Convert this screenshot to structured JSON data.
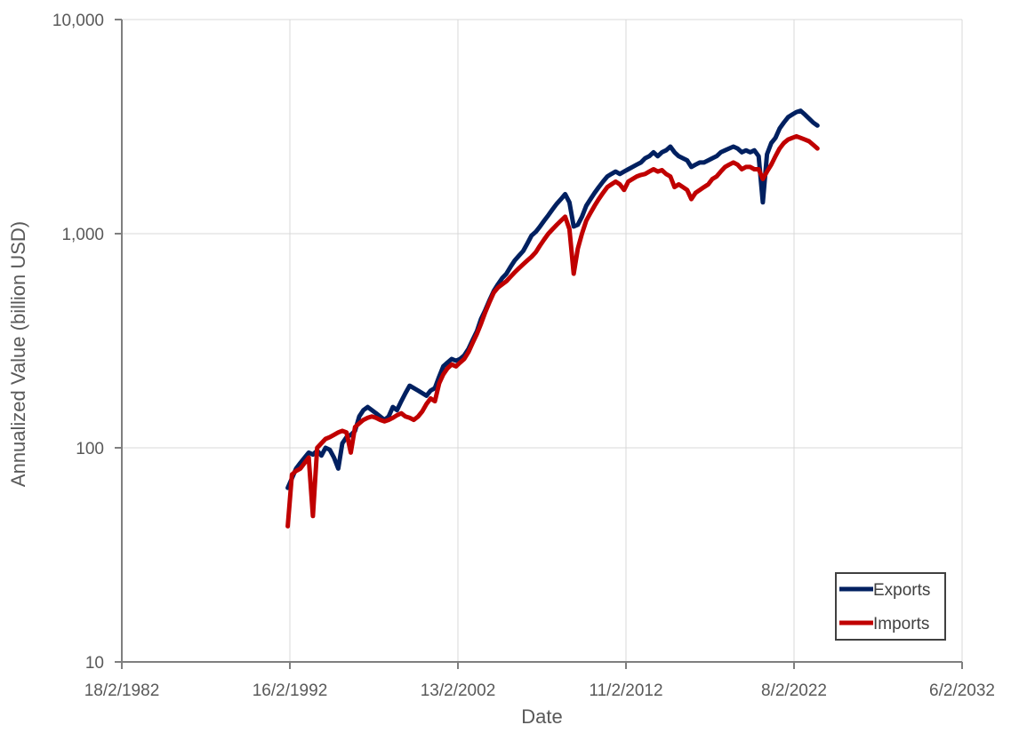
{
  "chart_data": {
    "type": "line",
    "title": "",
    "xlabel": "Date",
    "ylabel": "Annualized Value (billion USD)",
    "x_axis": {
      "kind": "date",
      "ticks": [
        "1982-02-18",
        "1992-02-16",
        "2002-02-13",
        "2012-02-11",
        "2022-02-08",
        "2032-02-06"
      ],
      "tick_labels": [
        "18/2/1982",
        "16/2/1992",
        "13/2/2002",
        "11/2/2012",
        "8/2/2022",
        "6/2/2032"
      ],
      "range": [
        "1982-02-18",
        "2032-02-06"
      ]
    },
    "y_axis": {
      "scale": "log",
      "range": [
        10,
        10000
      ],
      "ticks": [
        10,
        100,
        1000,
        10000
      ],
      "tick_labels": [
        "10",
        "100",
        "1,000",
        "10,000"
      ]
    },
    "grid": true,
    "legend": {
      "position": "bottom-right",
      "entries": [
        "Exports",
        "Imports"
      ]
    },
    "series": [
      {
        "name": "Exports",
        "color": "#002060",
        "points": [
          [
            "1992-01-01",
            65
          ],
          [
            "1992-04-01",
            72
          ],
          [
            "1992-07-01",
            80
          ],
          [
            "1992-10-01",
            85
          ],
          [
            "1993-01-01",
            90
          ],
          [
            "1993-04-01",
            95
          ],
          [
            "1993-07-01",
            93
          ],
          [
            "1993-10-01",
            97
          ],
          [
            "1994-01-01",
            92
          ],
          [
            "1994-04-01",
            100
          ],
          [
            "1994-07-01",
            98
          ],
          [
            "1994-10-01",
            90
          ],
          [
            "1995-01-01",
            80
          ],
          [
            "1995-04-01",
            105
          ],
          [
            "1995-07-01",
            112
          ],
          [
            "1995-10-01",
            115
          ],
          [
            "1996-01-01",
            120
          ],
          [
            "1996-04-01",
            140
          ],
          [
            "1996-07-01",
            150
          ],
          [
            "1996-10-01",
            155
          ],
          [
            "1997-01-01",
            150
          ],
          [
            "1997-04-01",
            145
          ],
          [
            "1997-07-01",
            140
          ],
          [
            "1997-10-01",
            135
          ],
          [
            "1998-01-01",
            140
          ],
          [
            "1998-04-01",
            155
          ],
          [
            "1998-07-01",
            150
          ],
          [
            "1998-10-01",
            165
          ],
          [
            "1999-01-01",
            180
          ],
          [
            "1999-04-01",
            195
          ],
          [
            "1999-07-01",
            190
          ],
          [
            "1999-10-01",
            185
          ],
          [
            "2000-01-01",
            180
          ],
          [
            "2000-04-01",
            175
          ],
          [
            "2000-07-01",
            185
          ],
          [
            "2000-10-01",
            190
          ],
          [
            "2001-01-01",
            215
          ],
          [
            "2001-04-01",
            240
          ],
          [
            "2001-07-01",
            250
          ],
          [
            "2001-10-01",
            260
          ],
          [
            "2002-01-01",
            255
          ],
          [
            "2002-04-01",
            260
          ],
          [
            "2002-07-01",
            270
          ],
          [
            "2002-10-01",
            290
          ],
          [
            "2003-01-01",
            320
          ],
          [
            "2003-04-01",
            350
          ],
          [
            "2003-07-01",
            400
          ],
          [
            "2003-10-01",
            440
          ],
          [
            "2004-01-01",
            490
          ],
          [
            "2004-04-01",
            540
          ],
          [
            "2004-07-01",
            580
          ],
          [
            "2004-10-01",
            620
          ],
          [
            "2005-01-01",
            650
          ],
          [
            "2005-04-01",
            700
          ],
          [
            "2005-07-01",
            750
          ],
          [
            "2005-10-01",
            790
          ],
          [
            "2006-01-01",
            830
          ],
          [
            "2006-04-01",
            900
          ],
          [
            "2006-07-01",
            980
          ],
          [
            "2006-10-01",
            1020
          ],
          [
            "2007-01-01",
            1080
          ],
          [
            "2007-04-01",
            1150
          ],
          [
            "2007-07-01",
            1220
          ],
          [
            "2007-10-01",
            1300
          ],
          [
            "2008-01-01",
            1380
          ],
          [
            "2008-04-01",
            1450
          ],
          [
            "2008-07-01",
            1530
          ],
          [
            "2008-10-01",
            1400
          ],
          [
            "2009-01-01",
            1080
          ],
          [
            "2009-04-01",
            1100
          ],
          [
            "2009-07-01",
            1200
          ],
          [
            "2009-10-01",
            1350
          ],
          [
            "2010-01-01",
            1450
          ],
          [
            "2010-04-01",
            1550
          ],
          [
            "2010-07-01",
            1650
          ],
          [
            "2010-10-01",
            1750
          ],
          [
            "2011-01-01",
            1850
          ],
          [
            "2011-04-01",
            1900
          ],
          [
            "2011-07-01",
            1950
          ],
          [
            "2011-10-01",
            1900
          ],
          [
            "2012-01-01",
            1950
          ],
          [
            "2012-04-01",
            2000
          ],
          [
            "2012-07-01",
            2050
          ],
          [
            "2012-10-01",
            2100
          ],
          [
            "2013-01-01",
            2150
          ],
          [
            "2013-04-01",
            2250
          ],
          [
            "2013-07-01",
            2300
          ],
          [
            "2013-10-01",
            2400
          ],
          [
            "2014-01-01",
            2300
          ],
          [
            "2014-04-01",
            2400
          ],
          [
            "2014-07-01",
            2450
          ],
          [
            "2014-10-01",
            2550
          ],
          [
            "2015-01-01",
            2400
          ],
          [
            "2015-04-01",
            2300
          ],
          [
            "2015-07-01",
            2250
          ],
          [
            "2015-10-01",
            2200
          ],
          [
            "2016-01-01",
            2050
          ],
          [
            "2016-04-01",
            2100
          ],
          [
            "2016-07-01",
            2150
          ],
          [
            "2016-10-01",
            2150
          ],
          [
            "2017-01-01",
            2200
          ],
          [
            "2017-04-01",
            2250
          ],
          [
            "2017-07-01",
            2300
          ],
          [
            "2017-10-01",
            2400
          ],
          [
            "2018-01-01",
            2450
          ],
          [
            "2018-04-01",
            2500
          ],
          [
            "2018-07-01",
            2550
          ],
          [
            "2018-10-01",
            2500
          ],
          [
            "2019-01-01",
            2400
          ],
          [
            "2019-04-01",
            2450
          ],
          [
            "2019-07-01",
            2400
          ],
          [
            "2019-10-01",
            2450
          ],
          [
            "2020-01-01",
            2300
          ],
          [
            "2020-04-01",
            1400
          ],
          [
            "2020-07-01",
            2350
          ],
          [
            "2020-10-01",
            2650
          ],
          [
            "2021-01-01",
            2800
          ],
          [
            "2021-04-01",
            3100
          ],
          [
            "2021-07-01",
            3300
          ],
          [
            "2021-10-01",
            3500
          ],
          [
            "2022-01-01",
            3600
          ],
          [
            "2022-04-01",
            3700
          ],
          [
            "2022-07-01",
            3750
          ],
          [
            "2022-10-01",
            3600
          ],
          [
            "2023-01-01",
            3450
          ],
          [
            "2023-04-01",
            3300
          ],
          [
            "2023-07-01",
            3200
          ]
        ]
      },
      {
        "name": "Imports",
        "color": "#c00000",
        "points": [
          [
            "1992-01-01",
            43
          ],
          [
            "1992-04-01",
            75
          ],
          [
            "1992-07-01",
            78
          ],
          [
            "1992-10-01",
            80
          ],
          [
            "1993-01-01",
            85
          ],
          [
            "1993-04-01",
            90
          ],
          [
            "1993-07-01",
            48
          ],
          [
            "1993-10-01",
            100
          ],
          [
            "1994-01-01",
            105
          ],
          [
            "1994-04-01",
            110
          ],
          [
            "1994-07-01",
            112
          ],
          [
            "1994-10-01",
            115
          ],
          [
            "1995-01-01",
            118
          ],
          [
            "1995-04-01",
            120
          ],
          [
            "1995-07-01",
            118
          ],
          [
            "1995-10-01",
            95
          ],
          [
            "1996-01-01",
            125
          ],
          [
            "1996-04-01",
            130
          ],
          [
            "1996-07-01",
            135
          ],
          [
            "1996-10-01",
            138
          ],
          [
            "1997-01-01",
            140
          ],
          [
            "1997-04-01",
            138
          ],
          [
            "1997-07-01",
            135
          ],
          [
            "1997-10-01",
            133
          ],
          [
            "1998-01-01",
            135
          ],
          [
            "1998-04-01",
            138
          ],
          [
            "1998-07-01",
            142
          ],
          [
            "1998-10-01",
            145
          ],
          [
            "1999-01-01",
            140
          ],
          [
            "1999-04-01",
            138
          ],
          [
            "1999-07-01",
            135
          ],
          [
            "1999-10-01",
            140
          ],
          [
            "2000-01-01",
            148
          ],
          [
            "2000-04-01",
            160
          ],
          [
            "2000-07-01",
            170
          ],
          [
            "2000-10-01",
            165
          ],
          [
            "2001-01-01",
            200
          ],
          [
            "2001-04-01",
            220
          ],
          [
            "2001-07-01",
            235
          ],
          [
            "2001-10-01",
            245
          ],
          [
            "2002-01-01",
            240
          ],
          [
            "2002-04-01",
            250
          ],
          [
            "2002-07-01",
            260
          ],
          [
            "2002-10-01",
            280
          ],
          [
            "2003-01-01",
            310
          ],
          [
            "2003-04-01",
            340
          ],
          [
            "2003-07-01",
            380
          ],
          [
            "2003-10-01",
            430
          ],
          [
            "2004-01-01",
            480
          ],
          [
            "2004-04-01",
            530
          ],
          [
            "2004-07-01",
            560
          ],
          [
            "2004-10-01",
            580
          ],
          [
            "2005-01-01",
            600
          ],
          [
            "2005-04-01",
            630
          ],
          [
            "2005-07-01",
            660
          ],
          [
            "2005-10-01",
            690
          ],
          [
            "2006-01-01",
            720
          ],
          [
            "2006-04-01",
            750
          ],
          [
            "2006-07-01",
            780
          ],
          [
            "2006-10-01",
            820
          ],
          [
            "2007-01-01",
            880
          ],
          [
            "2007-04-01",
            940
          ],
          [
            "2007-07-01",
            1000
          ],
          [
            "2007-10-01",
            1050
          ],
          [
            "2008-01-01",
            1100
          ],
          [
            "2008-04-01",
            1150
          ],
          [
            "2008-07-01",
            1200
          ],
          [
            "2008-10-01",
            1050
          ],
          [
            "2009-01-01",
            650
          ],
          [
            "2009-04-01",
            850
          ],
          [
            "2009-07-01",
            1000
          ],
          [
            "2009-10-01",
            1150
          ],
          [
            "2010-01-01",
            1250
          ],
          [
            "2010-04-01",
            1350
          ],
          [
            "2010-07-01",
            1450
          ],
          [
            "2010-10-01",
            1550
          ],
          [
            "2011-01-01",
            1650
          ],
          [
            "2011-04-01",
            1700
          ],
          [
            "2011-07-01",
            1750
          ],
          [
            "2011-10-01",
            1700
          ],
          [
            "2012-01-01",
            1600
          ],
          [
            "2012-04-01",
            1750
          ],
          [
            "2012-07-01",
            1800
          ],
          [
            "2012-10-01",
            1850
          ],
          [
            "2013-01-01",
            1880
          ],
          [
            "2013-04-01",
            1900
          ],
          [
            "2013-07-01",
            1950
          ],
          [
            "2013-10-01",
            2000
          ],
          [
            "2014-01-01",
            1950
          ],
          [
            "2014-04-01",
            1980
          ],
          [
            "2014-07-01",
            1900
          ],
          [
            "2014-10-01",
            1850
          ],
          [
            "2015-01-01",
            1650
          ],
          [
            "2015-04-01",
            1700
          ],
          [
            "2015-07-01",
            1650
          ],
          [
            "2015-10-01",
            1600
          ],
          [
            "2016-01-01",
            1450
          ],
          [
            "2016-04-01",
            1550
          ],
          [
            "2016-07-01",
            1600
          ],
          [
            "2016-10-01",
            1650
          ],
          [
            "2017-01-01",
            1700
          ],
          [
            "2017-04-01",
            1800
          ],
          [
            "2017-07-01",
            1850
          ],
          [
            "2017-10-01",
            1950
          ],
          [
            "2018-01-01",
            2050
          ],
          [
            "2018-04-01",
            2100
          ],
          [
            "2018-07-01",
            2150
          ],
          [
            "2018-10-01",
            2100
          ],
          [
            "2019-01-01",
            2000
          ],
          [
            "2019-04-01",
            2050
          ],
          [
            "2019-07-01",
            2050
          ],
          [
            "2019-10-01",
            2000
          ],
          [
            "2020-01-01",
            2000
          ],
          [
            "2020-04-01",
            1800
          ],
          [
            "2020-07-01",
            1950
          ],
          [
            "2020-10-01",
            2100
          ],
          [
            "2021-01-01",
            2300
          ],
          [
            "2021-04-01",
            2500
          ],
          [
            "2021-07-01",
            2650
          ],
          [
            "2021-10-01",
            2750
          ],
          [
            "2022-01-01",
            2800
          ],
          [
            "2022-04-01",
            2850
          ],
          [
            "2022-07-01",
            2800
          ],
          [
            "2022-10-01",
            2750
          ],
          [
            "2023-01-01",
            2700
          ],
          [
            "2023-04-01",
            2600
          ],
          [
            "2023-07-01",
            2500
          ]
        ]
      }
    ]
  }
}
